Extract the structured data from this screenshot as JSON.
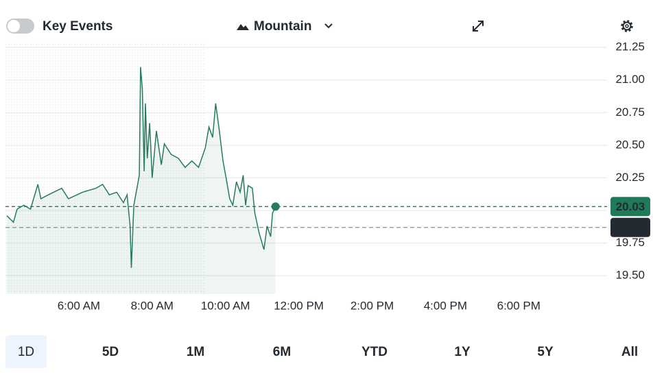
{
  "toolbar": {
    "toggle_label": "Key Events",
    "chart_style": "Mountain"
  },
  "chart_data": {
    "type": "line",
    "x": [
      242,
      253,
      259,
      270,
      281,
      293,
      298,
      310,
      332,
      343,
      366,
      388,
      399,
      410,
      422,
      433,
      439,
      444,
      446,
      450,
      459,
      461,
      464,
      467,
      469,
      472,
      476,
      480,
      487,
      495,
      500,
      511,
      523,
      534,
      545,
      556,
      567,
      573,
      579,
      584,
      590,
      596,
      601,
      607,
      612,
      618,
      624,
      629,
      633,
      637,
      644,
      648,
      655,
      663,
      668,
      674,
      677,
      682
    ],
    "series": [
      {
        "color": "#267a5e",
        "values": [
          19.96,
          19.91,
          20.01,
          20.04,
          20.01,
          20.2,
          20.09,
          20.12,
          20.17,
          20.09,
          20.14,
          20.17,
          20.2,
          20.12,
          20.14,
          20.06,
          20.12,
          19.88,
          19.56,
          20.04,
          20.27,
          21.1,
          20.93,
          20.3,
          20.82,
          20.4,
          20.67,
          20.25,
          20.61,
          20.35,
          20.51,
          20.43,
          20.4,
          20.33,
          20.38,
          20.33,
          20.48,
          20.64,
          20.56,
          20.82,
          20.61,
          20.38,
          20.25,
          20.09,
          20.04,
          20.22,
          20.14,
          20.27,
          20.04,
          20.19,
          20.17,
          19.98,
          19.83,
          19.7,
          19.88,
          19.8,
          19.98,
          20.03
        ]
      }
    ],
    "xlim": [
      240,
      1220
    ],
    "xticks": [
      {
        "value": 360,
        "label": "6:00 AM"
      },
      {
        "value": 480,
        "label": "8:00 AM"
      },
      {
        "value": 600,
        "label": "10:00 AM"
      },
      {
        "value": 720,
        "label": "12:00 PM"
      },
      {
        "value": 840,
        "label": "2:00 PM"
      },
      {
        "value": 960,
        "label": "4:00 PM"
      },
      {
        "value": 1080,
        "label": "6:00 PM"
      }
    ],
    "ylim": [
      19.36,
      21.29
    ],
    "yticks": [
      {
        "value": 19.5,
        "label": "19.50"
      },
      {
        "value": 19.75,
        "label": "19.75"
      },
      {
        "value": 20,
        "label": "20.00"
      },
      {
        "value": 20.25,
        "label": "20.25"
      },
      {
        "value": 20.5,
        "label": "20.50"
      },
      {
        "value": 20.75,
        "label": "20.75"
      },
      {
        "value": 21,
        "label": "21.00"
      },
      {
        "value": 21.25,
        "label": "21.25"
      }
    ],
    "grid": true,
    "last_price": {
      "value": 20.03,
      "color": "#1f7a5a"
    },
    "previous_close": {
      "value": 19.87,
      "color": "#232a31"
    }
  },
  "range_buttons": [
    "1D",
    "5D",
    "1M",
    "6M",
    "YTD",
    "1Y",
    "5Y",
    "All"
  ],
  "selected_range": 0
}
